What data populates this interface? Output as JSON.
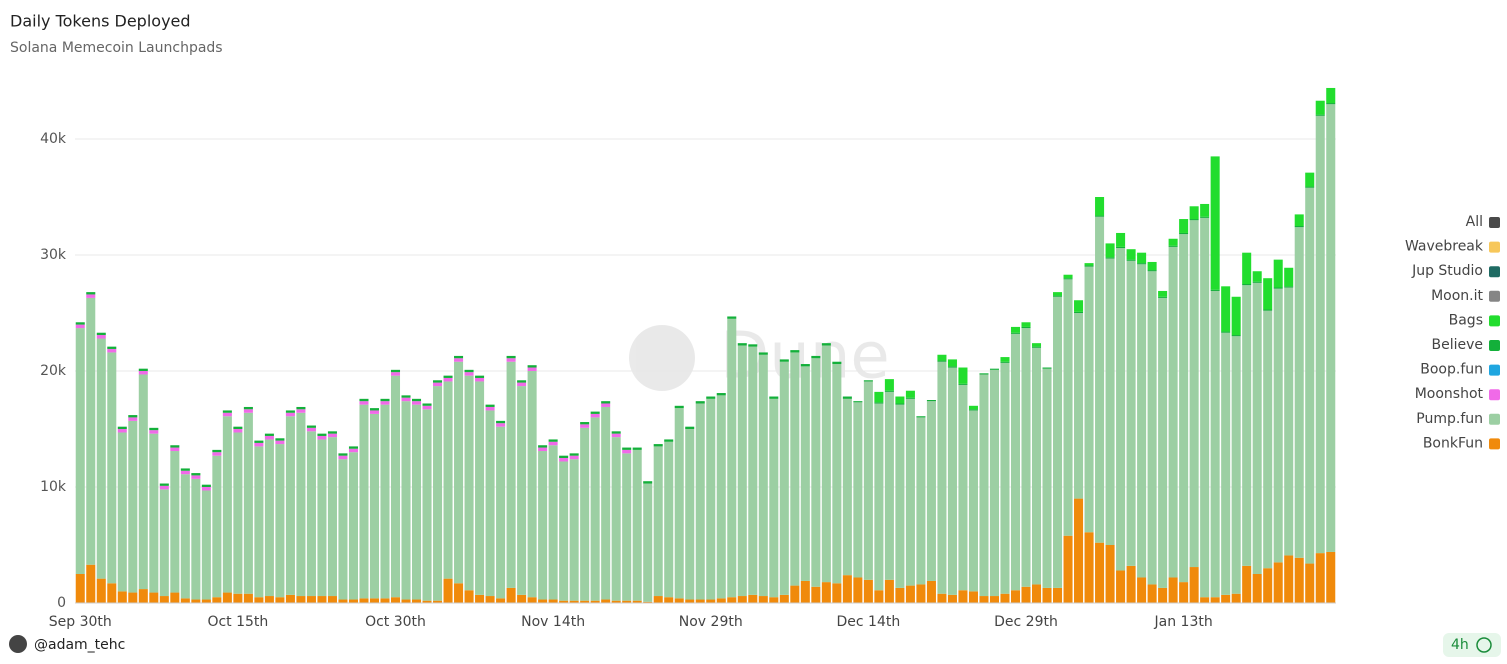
{
  "chart_data": {
    "type": "stacked_bar",
    "title": "Daily Tokens Deployed",
    "subtitle": "Solana Memecoin Launchpads",
    "categories": [
      "Sep 30th",
      null,
      null,
      null,
      null,
      null,
      null,
      null,
      null,
      null,
      null,
      null,
      null,
      null,
      null,
      "Oct 15th",
      null,
      null,
      null,
      null,
      null,
      null,
      null,
      null,
      null,
      null,
      null,
      null,
      null,
      null,
      "Oct 30th",
      null,
      null,
      null,
      null,
      null,
      null,
      null,
      null,
      null,
      null,
      null,
      null,
      null,
      null,
      "Nov 14th",
      null,
      null,
      null,
      null,
      null,
      null,
      null,
      null,
      null,
      null,
      null,
      null,
      null,
      null,
      "Nov 29th",
      null,
      null,
      null,
      null,
      null,
      null,
      null,
      null,
      null,
      null,
      null,
      null,
      null,
      null,
      "Dec 14th",
      null,
      null,
      null,
      null,
      null,
      null,
      null,
      null,
      null,
      null,
      null,
      null,
      null,
      null,
      "Dec 29th",
      null,
      null,
      null,
      null,
      null,
      null,
      null,
      null,
      null,
      null,
      null,
      null,
      null,
      null,
      "Jan 13th",
      null,
      null,
      null,
      null,
      null,
      null,
      null,
      null,
      null,
      null,
      null,
      null,
      null,
      null
    ],
    "ylim": [
      0,
      45000
    ],
    "yticks": [
      0,
      {
        "value": 10000,
        "label": "10k"
      },
      {
        "value": 20000,
        "label": "20k"
      },
      {
        "value": 30000,
        "label": "30k"
      },
      {
        "value": 40000,
        "label": "40k"
      }
    ],
    "grid": true,
    "legend": "right",
    "series": [
      {
        "name": "All",
        "color": "#4a4a4a"
      },
      {
        "name": "Wavebreak",
        "color": "#f7c75a"
      },
      {
        "name": "Jup Studio",
        "color": "#1f6b63"
      },
      {
        "name": "Moon.it",
        "color": "#858585"
      },
      {
        "name": "Bags",
        "color": "#22dd2e",
        "values": [
          0,
          0,
          0,
          0,
          0,
          0,
          0,
          0,
          0,
          0,
          0,
          0,
          0,
          0,
          0,
          0,
          0,
          0,
          0,
          0,
          0,
          0,
          0,
          0,
          0,
          0,
          0,
          0,
          0,
          0,
          0,
          0,
          0,
          0,
          0,
          0,
          0,
          0,
          0,
          0,
          0,
          0,
          0,
          0,
          0,
          0,
          0,
          0,
          0,
          0,
          0,
          0,
          0,
          0,
          0,
          0,
          0,
          0,
          0,
          0,
          0,
          0,
          0,
          0,
          0,
          0,
          0,
          0,
          0,
          0,
          0,
          0,
          0,
          0,
          0,
          0,
          900,
          1000,
          600,
          600,
          0,
          0,
          500,
          600,
          1400,
          300,
          0,
          0,
          400,
          500,
          400,
          300,
          0,
          300,
          300,
          1000,
          200,
          1600,
          1200,
          1200,
          900,
          900,
          700,
          500,
          600,
          1200,
          1100,
          1100,
          11500,
          3900,
          3300,
          2700,
          900,
          2700,
          2400,
          1600,
          1000,
          1200,
          1200,
          1300
        ]
      },
      {
        "name": "Believe",
        "color": "#13b03a",
        "values": [
          200,
          200,
          200,
          200,
          200,
          200,
          200,
          200,
          200,
          200,
          200,
          200,
          200,
          200,
          200,
          200,
          200,
          200,
          200,
          200,
          200,
          200,
          200,
          200,
          200,
          200,
          200,
          200,
          200,
          200,
          200,
          200,
          200,
          200,
          200,
          200,
          200,
          200,
          200,
          200,
          200,
          200,
          200,
          200,
          200,
          200,
          200,
          200,
          200,
          200,
          200,
          200,
          200,
          200,
          200,
          200,
          200,
          200,
          200,
          200,
          200,
          200,
          200,
          200,
          200,
          200,
          200,
          200,
          200,
          200,
          200,
          200,
          200,
          200,
          100,
          100,
          100,
          100,
          100,
          100,
          100,
          100,
          100,
          100,
          100,
          100,
          100,
          100,
          100,
          100,
          100,
          100,
          100,
          100,
          100,
          100,
          100,
          100,
          100,
          100,
          100,
          100,
          100,
          100,
          100,
          100,
          100,
          100,
          100,
          100,
          100,
          100,
          100,
          100,
          100,
          100,
          100,
          100,
          100,
          100
        ]
      },
      {
        "name": "Boop.fun",
        "color": "#1fa6e0"
      },
      {
        "name": "Moonshot",
        "color": "#f06ae8",
        "values": [
          300,
          300,
          300,
          300,
          300,
          300,
          300,
          300,
          300,
          300,
          300,
          300,
          300,
          300,
          300,
          300,
          300,
          300,
          300,
          300,
          300,
          300,
          300,
          300,
          300,
          300,
          300,
          300,
          300,
          300,
          300,
          300,
          300,
          300,
          300,
          300,
          300,
          300,
          300,
          300,
          300,
          300,
          300,
          300,
          300,
          300,
          300,
          300,
          300,
          300,
          300,
          300,
          300,
          0,
          0,
          0,
          0,
          0,
          0,
          0,
          0,
          0,
          0,
          0,
          0,
          0,
          0,
          0,
          0,
          0,
          0,
          0,
          0,
          0,
          0,
          0,
          0,
          0,
          0,
          0,
          0,
          0,
          0,
          0,
          0,
          0,
          0,
          0,
          0,
          0,
          0,
          0,
          0,
          0,
          0,
          0,
          0,
          0,
          0,
          0,
          0,
          0,
          0,
          0,
          0,
          0,
          0,
          0,
          0,
          0,
          0,
          0,
          0,
          0,
          0,
          0,
          0,
          0,
          0,
          0
        ]
      },
      {
        "name": "Pump.fun",
        "color": "#9ccfa3",
        "values": [
          21200,
          23000,
          20700,
          19900,
          13700,
          14800,
          18500,
          13700,
          9200,
          12200,
          10700,
          10400,
          9400,
          12200,
          15200,
          13900,
          15600,
          13000,
          13500,
          13200,
          15400,
          15800,
          14200,
          13500,
          13700,
          12100,
          12700,
          16700,
          15900,
          16700,
          19100,
          17100,
          16800,
          16500,
          18500,
          17000,
          19100,
          18500,
          18400,
          16000,
          14800,
          19500,
          18000,
          19500,
          12800,
          13300,
          12000,
          12200,
          14900,
          15800,
          16600,
          14100,
          12700,
          13000,
          10200,
          12900,
          13400,
          16400,
          14700,
          16900,
          17300,
          17500,
          24000,
          21600,
          21400,
          20800,
          17100,
          20100,
          20100,
          18500,
          19700,
          20400,
          18900,
          15200,
          15100,
          17100,
          16100,
          16200,
          15800,
          16100,
          14400,
          15500,
          20000,
          19600,
          17700,
          15600,
          19100,
          19500,
          19900,
          22100,
          22300,
          20400,
          18900,
          25100,
          22100,
          16000,
          22900,
          28100,
          24700,
          27800,
          26300,
          27000,
          27000,
          25000,
          28500,
          30000,
          29900,
          32700,
          26400,
          22600,
          22200,
          24200,
          25100,
          22200,
          23600,
          23100,
          28500,
          32400,
          37700,
          38600
        ]
      },
      {
        "name": "BonkFun",
        "color": "#f08a0b",
        "values": [
          2500,
          3300,
          2100,
          1700,
          1000,
          900,
          1200,
          900,
          600,
          900,
          400,
          300,
          300,
          500,
          900,
          800,
          800,
          500,
          600,
          500,
          700,
          600,
          600,
          600,
          600,
          300,
          300,
          400,
          400,
          400,
          500,
          300,
          300,
          200,
          200,
          2100,
          1700,
          1100,
          700,
          600,
          400,
          1300,
          700,
          500,
          300,
          300,
          200,
          200,
          200,
          200,
          300,
          200,
          200,
          200,
          100,
          600,
          500,
          400,
          300,
          300,
          300,
          400,
          500,
          600,
          700,
          600,
          500,
          700,
          1500,
          1900,
          1400,
          1800,
          1700,
          2400,
          2200,
          2000,
          1100,
          2000,
          1300,
          1500,
          1600,
          1900,
          800,
          700,
          1100,
          1000,
          600,
          600,
          800,
          1100,
          1400,
          1600,
          1300,
          1300,
          5800,
          9000,
          6100,
          5200,
          5000,
          2800,
          3200,
          2200,
          1600,
          1300,
          2200,
          1800,
          3100,
          500,
          500,
          700,
          800,
          3200,
          2500,
          3000,
          3500,
          4100,
          3900,
          3400,
          4300,
          4400
        ]
      }
    ]
  },
  "watermark": "Dune",
  "author": "@adam_tehc",
  "refresh": "4h"
}
